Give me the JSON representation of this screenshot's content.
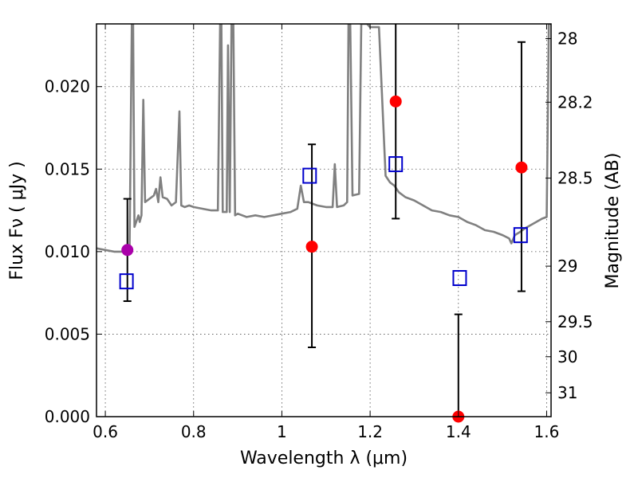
{
  "chart_data": {
    "type": "scatter",
    "xlabel": "Wavelength  λ (μm)",
    "ylabel": "Flux  Fν  ( μJy )",
    "ylabel_right": "Magnitude (AB)",
    "xlim": [
      0.58,
      1.61
    ],
    "ylim": [
      0.0,
      0.0238
    ],
    "grid": true,
    "x_ticks": [
      {
        "value": 0.6,
        "label": "0.6"
      },
      {
        "value": 0.8,
        "label": "0.8"
      },
      {
        "value": 1.0,
        "label": "1"
      },
      {
        "value": 1.2,
        "label": "1.2"
      },
      {
        "value": 1.4,
        "label": "1.4"
      },
      {
        "value": 1.6,
        "label": "1.6"
      }
    ],
    "y_ticks": [
      {
        "value": 0.0,
        "label": "0.000"
      },
      {
        "value": 0.005,
        "label": "0.005"
      },
      {
        "value": 0.01,
        "label": "0.010"
      },
      {
        "value": 0.015,
        "label": "0.015"
      },
      {
        "value": 0.02,
        "label": "0.020"
      }
    ],
    "right_ticks": [
      {
        "value": 28,
        "label": "28"
      },
      {
        "value": 28.2,
        "label": "28.2"
      },
      {
        "value": 28.5,
        "label": "28.5"
      },
      {
        "value": 29,
        "label": "29"
      },
      {
        "value": 29.5,
        "label": "29.5"
      },
      {
        "value": 30,
        "label": "30"
      },
      {
        "value": 31,
        "label": "31"
      }
    ],
    "colors": {
      "spectrum": "#808080",
      "observed": "#ff0000",
      "observed_first": "#aa00aa",
      "model": "#0000cc",
      "errorbar": "#000000"
    },
    "observed_points": [
      {
        "x": 0.65,
        "y": 0.0101,
        "yerr_low": 0.007,
        "yerr_high": 0.0132
      },
      {
        "x": 1.068,
        "y": 0.0103,
        "yerr_low": 0.0042,
        "yerr_high": 0.0165
      },
      {
        "x": 1.258,
        "y": 0.0191,
        "yerr_low": 0.012,
        "yerr_high": 0.0238
      },
      {
        "x": 1.4,
        "y": 0.0,
        "yerr_low": 0.0,
        "yerr_high": 0.0062
      },
      {
        "x": 1.543,
        "y": 0.0151,
        "yerr_low": 0.0076,
        "yerr_high": 0.0227
      }
    ],
    "model_points": [
      {
        "x": 0.648,
        "y": 0.0082
      },
      {
        "x": 1.063,
        "y": 0.0146
      },
      {
        "x": 1.258,
        "y": 0.0153
      },
      {
        "x": 1.403,
        "y": 0.0084
      },
      {
        "x": 1.541,
        "y": 0.011
      }
    ],
    "spectrum": [
      [
        0.58,
        0.0102
      ],
      [
        0.6,
        0.0101
      ],
      [
        0.62,
        0.01
      ],
      [
        0.64,
        0.01
      ],
      [
        0.655,
        0.0103
      ],
      [
        0.66,
        0.0238
      ],
      [
        0.663,
        0.0238
      ],
      [
        0.666,
        0.0115
      ],
      [
        0.675,
        0.0122
      ],
      [
        0.678,
        0.0118
      ],
      [
        0.682,
        0.0122
      ],
      [
        0.686,
        0.0192
      ],
      [
        0.69,
        0.013
      ],
      [
        0.7,
        0.0132
      ],
      [
        0.71,
        0.0134
      ],
      [
        0.715,
        0.0138
      ],
      [
        0.72,
        0.013
      ],
      [
        0.725,
        0.0145
      ],
      [
        0.73,
        0.0133
      ],
      [
        0.74,
        0.0132
      ],
      [
        0.75,
        0.0128
      ],
      [
        0.76,
        0.013
      ],
      [
        0.768,
        0.0185
      ],
      [
        0.772,
        0.0128
      ],
      [
        0.78,
        0.0127
      ],
      [
        0.79,
        0.0128
      ],
      [
        0.8,
        0.0127
      ],
      [
        0.82,
        0.0126
      ],
      [
        0.84,
        0.0125
      ],
      [
        0.855,
        0.0125
      ],
      [
        0.86,
        0.0238
      ],
      [
        0.863,
        0.0238
      ],
      [
        0.866,
        0.0124
      ],
      [
        0.875,
        0.0124
      ],
      [
        0.878,
        0.0225
      ],
      [
        0.882,
        0.0124
      ],
      [
        0.886,
        0.0238
      ],
      [
        0.89,
        0.0238
      ],
      [
        0.894,
        0.0122
      ],
      [
        0.9,
        0.0123
      ],
      [
        0.92,
        0.0121
      ],
      [
        0.94,
        0.0122
      ],
      [
        0.96,
        0.0121
      ],
      [
        0.98,
        0.0122
      ],
      [
        1.0,
        0.0123
      ],
      [
        1.02,
        0.0124
      ],
      [
        1.035,
        0.0126
      ],
      [
        1.043,
        0.014
      ],
      [
        1.05,
        0.013
      ],
      [
        1.06,
        0.013
      ],
      [
        1.08,
        0.0128
      ],
      [
        1.1,
        0.0127
      ],
      [
        1.115,
        0.0127
      ],
      [
        1.12,
        0.0153
      ],
      [
        1.125,
        0.0127
      ],
      [
        1.14,
        0.0128
      ],
      [
        1.148,
        0.013
      ],
      [
        1.151,
        0.0238
      ],
      [
        1.155,
        0.0238
      ],
      [
        1.16,
        0.0134
      ],
      [
        1.175,
        0.0135
      ],
      [
        1.18,
        0.0238
      ],
      [
        1.193,
        0.0238
      ],
      [
        1.2,
        0.0236
      ],
      [
        1.22,
        0.0236
      ],
      [
        1.235,
        0.0146
      ],
      [
        1.245,
        0.0142
      ],
      [
        1.255,
        0.014
      ],
      [
        1.265,
        0.0136
      ],
      [
        1.28,
        0.0133
      ],
      [
        1.3,
        0.0131
      ],
      [
        1.32,
        0.0128
      ],
      [
        1.34,
        0.0125
      ],
      [
        1.36,
        0.0124
      ],
      [
        1.38,
        0.0122
      ],
      [
        1.4,
        0.0121
      ],
      [
        1.42,
        0.0118
      ],
      [
        1.44,
        0.0116
      ],
      [
        1.46,
        0.0113
      ],
      [
        1.48,
        0.0112
      ],
      [
        1.5,
        0.011
      ],
      [
        1.515,
        0.0108
      ],
      [
        1.52,
        0.0105
      ],
      [
        1.528,
        0.011
      ],
      [
        1.54,
        0.0112
      ],
      [
        1.55,
        0.0114
      ],
      [
        1.57,
        0.0117
      ],
      [
        1.59,
        0.012
      ],
      [
        1.6,
        0.0121
      ],
      [
        1.605,
        0.0238
      ],
      [
        1.61,
        0.0238
      ]
    ]
  }
}
